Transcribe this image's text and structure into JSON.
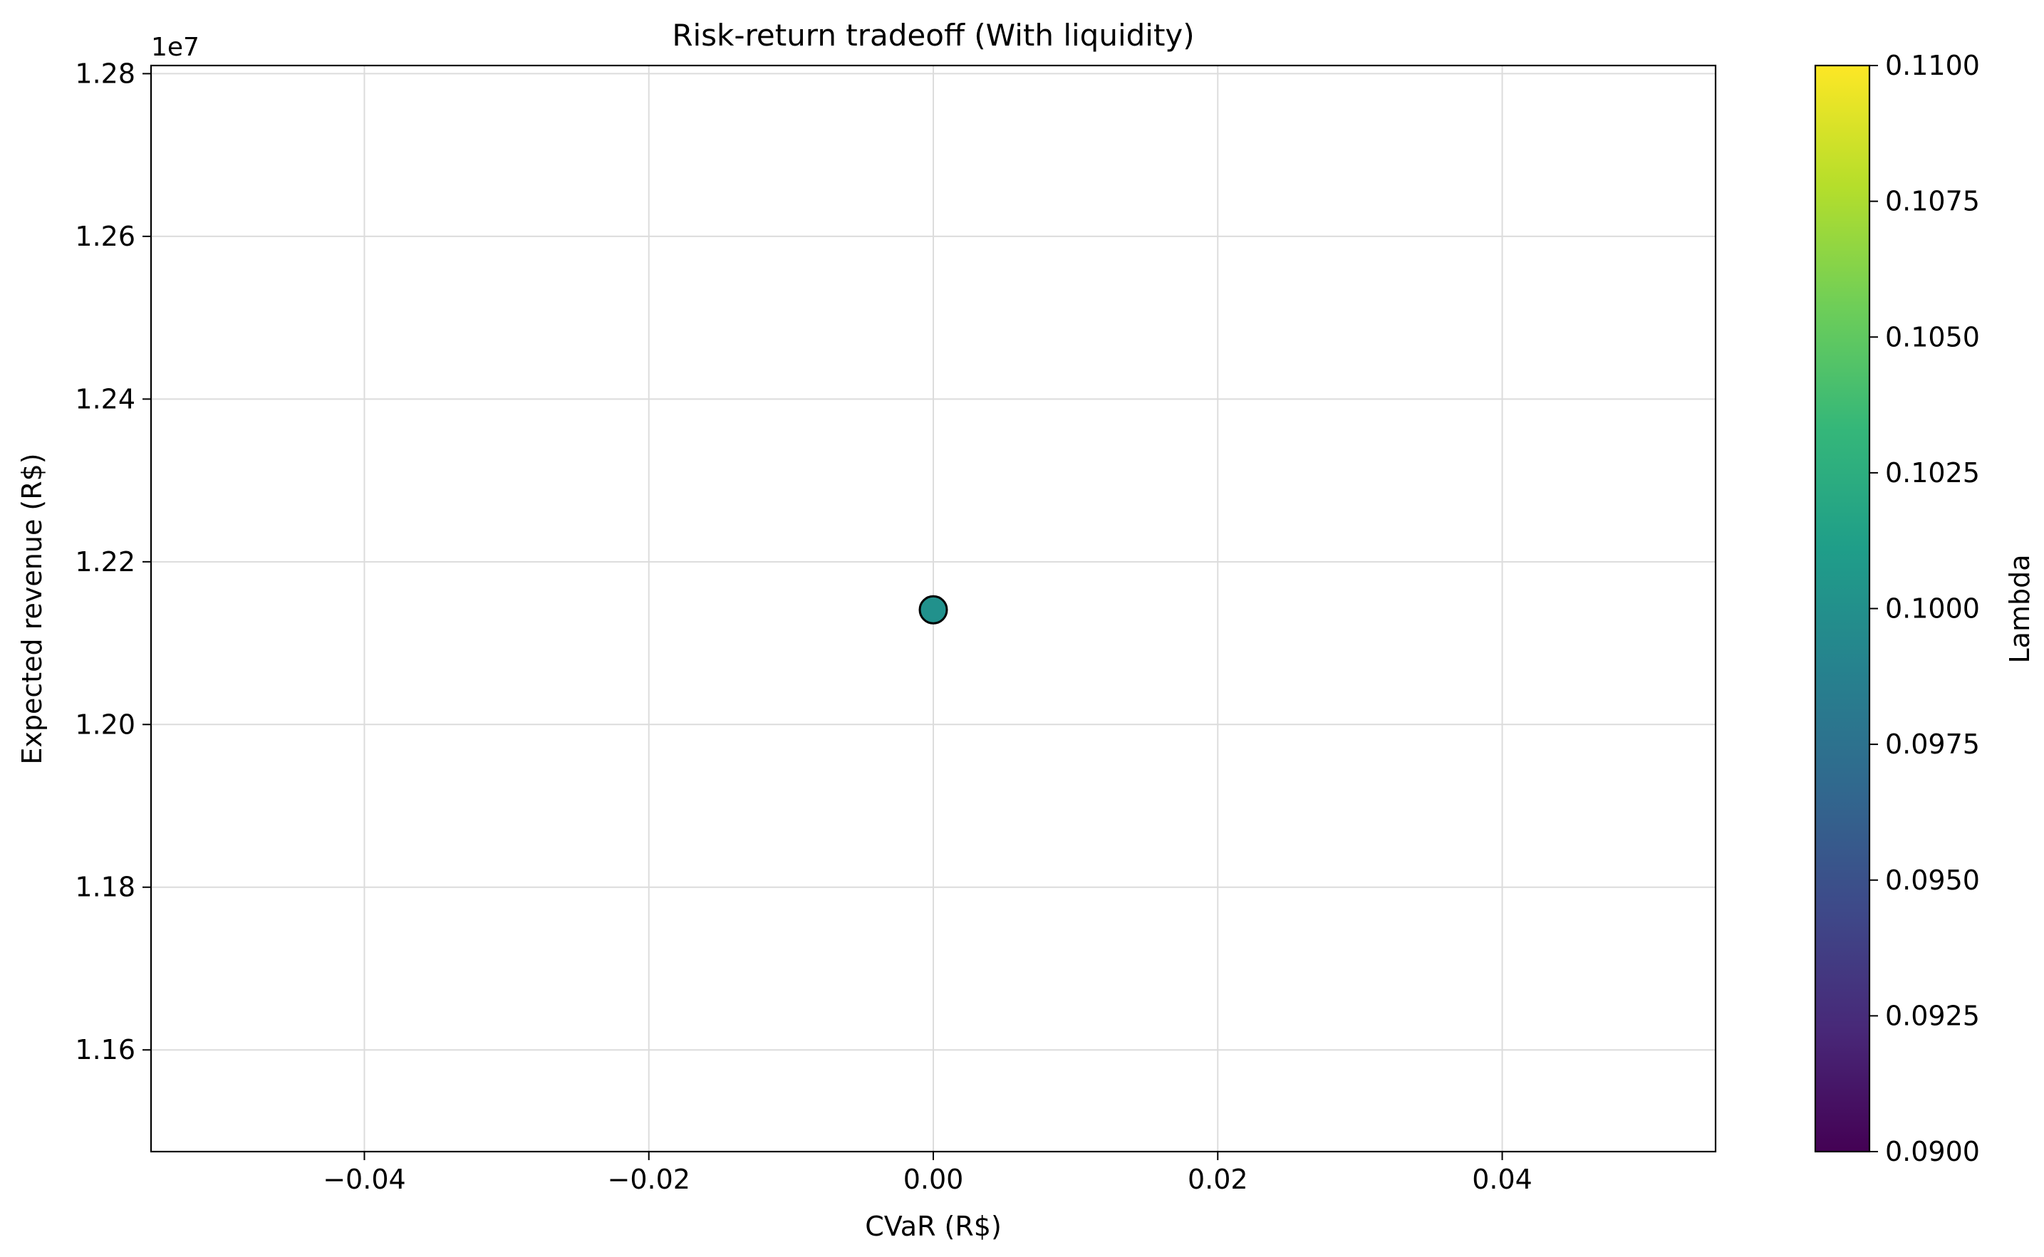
{
  "chart_data": {
    "type": "scatter",
    "title": "Risk-return tradeoff (With liquidity)",
    "xlabel": "CVaR (R$)",
    "ylabel": "Expected revenue (R$)",
    "y_offset_label": "1e7",
    "xlim": [
      -0.055,
      0.055
    ],
    "ylim": [
      1.1475,
      1.281
    ],
    "x_ticks": [
      -0.04,
      -0.02,
      0.0,
      0.02,
      0.04
    ],
    "x_tick_labels": [
      "−0.04",
      "−0.02",
      "0.00",
      "0.02",
      "0.04"
    ],
    "y_ticks": [
      1.16,
      1.18,
      1.2,
      1.22,
      1.24,
      1.26,
      1.28
    ],
    "y_tick_labels": [
      "1.16",
      "1.18",
      "1.20",
      "1.22",
      "1.24",
      "1.26",
      "1.28"
    ],
    "grid": true,
    "points": [
      {
        "x": 0.0,
        "y": 1.2141,
        "lambda": 0.1
      }
    ],
    "colorbar": {
      "label": "Lambda",
      "colormap": "viridis",
      "range": [
        0.09,
        0.11
      ],
      "ticks": [
        0.09,
        0.0925,
        0.095,
        0.0975,
        0.1,
        0.1025,
        0.105,
        0.1075,
        0.11
      ],
      "tick_labels": [
        "0.0900",
        "0.0925",
        "0.0950",
        "0.0975",
        "0.1000",
        "0.1025",
        "0.1050",
        "0.1075",
        "0.1100"
      ]
    },
    "colors": {
      "point_fill": "#21918c",
      "point_edge": "#000000",
      "grid": "#dcdcdc",
      "viridis": [
        "#440154",
        "#482878",
        "#3e4989",
        "#31688e",
        "#26828e",
        "#1f9e89",
        "#35b779",
        "#6ece58",
        "#b5de2b",
        "#fde725"
      ]
    }
  }
}
